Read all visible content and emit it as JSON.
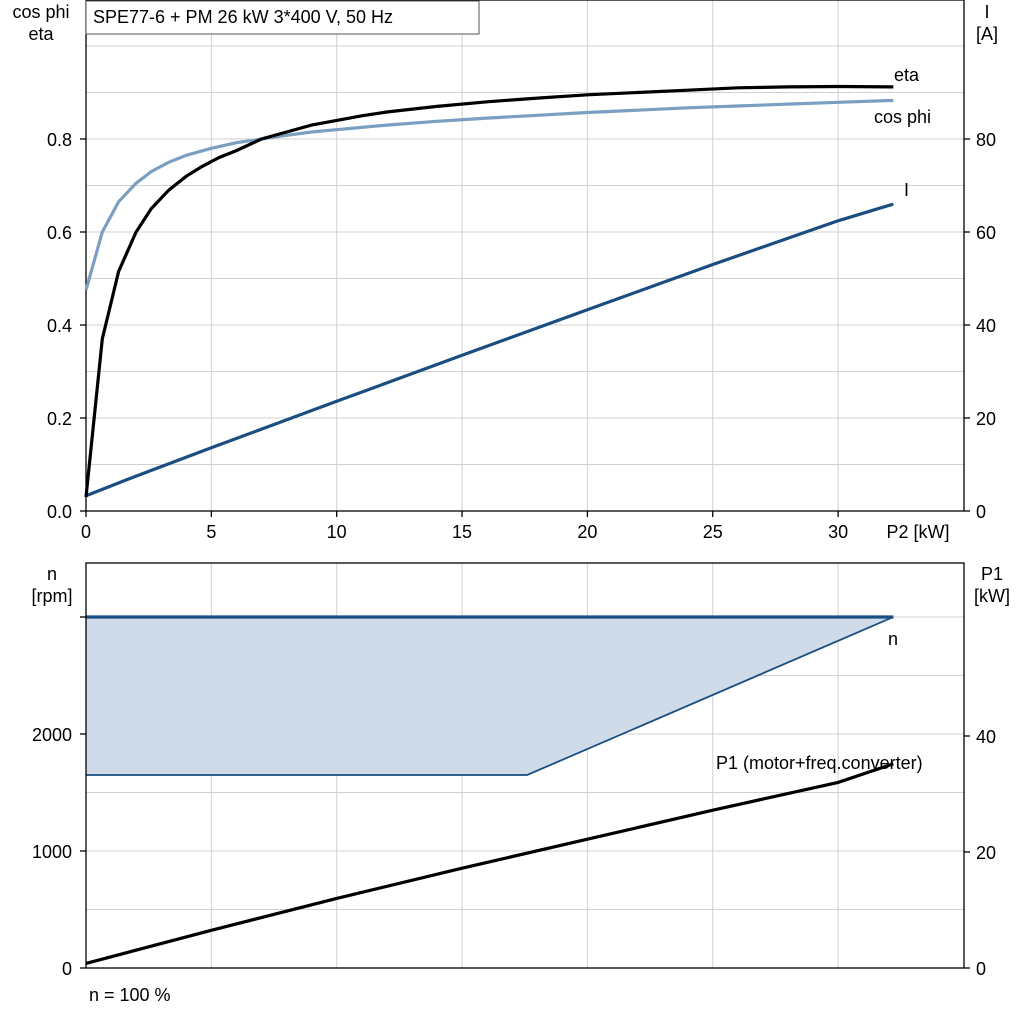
{
  "title": "SPE77-6 + PM   26 kW   3*400 V, 50 Hz",
  "footer": "n = 100 %",
  "colors": {
    "eta": "#000000",
    "cos_phi": "#7a9fc0",
    "current": "#1a4d80",
    "speed": "#1a4d80",
    "speed_fill": "#cfdbe8",
    "p1": "#000000"
  },
  "chart_data": [
    {
      "type": "line",
      "title": "SPE77-6 + PM   26 kW   3*400 V, 50 Hz",
      "xlabel": "P2 [kW]",
      "ylabel_left": [
        "cos phi",
        "eta"
      ],
      "ylabel_right": [
        "I",
        "[A]"
      ],
      "xlim": [
        0,
        35
      ],
      "ylim_left": [
        0,
        1.1
      ],
      "ylim_right": [
        0,
        110
      ],
      "x_ticks": [
        "0",
        "5",
        "10",
        "15",
        "20",
        "25",
        "30"
      ],
      "y_left_ticks": [
        "0.0",
        "0.2",
        "0.4",
        "0.6",
        "0.8"
      ],
      "y_right_ticks": [
        "0",
        "20",
        "40",
        "60",
        "80"
      ],
      "grid": true,
      "series": [
        {
          "name": "eta",
          "axis": "left",
          "x": [
            0,
            0.65,
            1.3,
            2,
            2.6,
            3.3,
            4,
            4.6,
            5.3,
            6,
            7,
            8,
            9,
            10,
            11,
            12,
            14,
            16,
            18,
            20,
            22,
            24,
            26,
            28,
            30,
            32.2
          ],
          "y": [
            0.03,
            0.37,
            0.515,
            0.6,
            0.65,
            0.69,
            0.72,
            0.74,
            0.76,
            0.775,
            0.8,
            0.815,
            0.83,
            0.84,
            0.85,
            0.858,
            0.87,
            0.88,
            0.888,
            0.895,
            0.9,
            0.905,
            0.91,
            0.912,
            0.913,
            0.912
          ]
        },
        {
          "name": "cos phi",
          "axis": "left",
          "x": [
            0,
            0.65,
            1.3,
            2,
            2.6,
            3.3,
            4,
            5,
            6,
            7,
            8,
            9,
            10,
            12,
            14,
            16,
            18,
            20,
            22,
            24,
            26,
            28,
            30,
            32.2
          ],
          "y": [
            0.475,
            0.6,
            0.665,
            0.705,
            0.73,
            0.75,
            0.765,
            0.78,
            0.792,
            0.8,
            0.808,
            0.815,
            0.82,
            0.83,
            0.838,
            0.845,
            0.851,
            0.857,
            0.862,
            0.867,
            0.871,
            0.875,
            0.879,
            0.883
          ]
        },
        {
          "name": "I",
          "axis": "right",
          "x": [
            0,
            2,
            5,
            10,
            15,
            20,
            25,
            30,
            32.2
          ],
          "y": [
            3.3,
            7.5,
            13.6,
            23.6,
            33.5,
            43.3,
            53,
            62.4,
            66
          ]
        }
      ]
    },
    {
      "type": "area",
      "xlabel": "",
      "ylabel_left": [
        "n",
        "[rpm]"
      ],
      "ylabel_right": [
        "P1",
        "[kW]"
      ],
      "xlim": [
        0,
        35
      ],
      "ylim_left": [
        0,
        3500
      ],
      "ylim_right": [
        0,
        70
      ],
      "y_left_ticks": [
        "0",
        "1000",
        "2000"
      ],
      "y_right_ticks": [
        "0",
        "20",
        "40"
      ],
      "grid": true,
      "series": [
        {
          "name": "n",
          "axis": "left",
          "x": [
            0,
            32.2
          ],
          "y": [
            3000,
            3000
          ],
          "lower_x": [
            0,
            17.6,
            32.2
          ],
          "lower_y": [
            1650,
            1650,
            3000
          ]
        },
        {
          "name": "P1 (motor+freq.converter)",
          "axis": "right",
          "x": [
            0,
            5,
            10,
            15,
            20,
            25,
            30,
            32.2
          ],
          "y": [
            0.8,
            6.5,
            12,
            17.2,
            22.2,
            27.2,
            32,
            35.2
          ]
        }
      ]
    }
  ]
}
